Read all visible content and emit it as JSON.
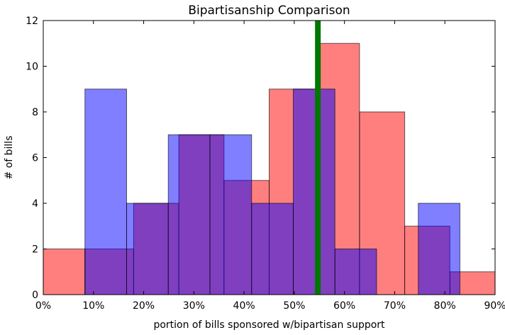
{
  "chart_data": {
    "type": "bar",
    "title": "Bipartisanship Comparison",
    "xlabel": "portion of bills sponsored w/bipartisan support",
    "ylabel": "# of bills",
    "xlim": [
      0,
      0.9
    ],
    "ylim": [
      0,
      12
    ],
    "x_ticks": [
      0,
      0.1,
      0.2,
      0.3,
      0.4,
      0.5,
      0.6,
      0.7,
      0.8,
      0.9
    ],
    "x_tick_labels": [
      "0%",
      "10%",
      "20%",
      "30%",
      "40%",
      "50%",
      "60%",
      "70%",
      "80%",
      "90%"
    ],
    "y_ticks": [
      0,
      2,
      4,
      6,
      8,
      10,
      12
    ],
    "y_tick_labels": [
      "0",
      "2",
      "4",
      "6",
      "8",
      "10",
      "12"
    ],
    "grid": false,
    "legend": "none",
    "reference_line": {
      "x": 0.547,
      "color": "#007700"
    },
    "series": [
      {
        "color": "#0000ff",
        "alpha": 0.5,
        "bins": [
          {
            "x0": 0.0,
            "x1": 0.083,
            "count": 0
          },
          {
            "x0": 0.083,
            "x1": 0.166,
            "count": 9
          },
          {
            "x0": 0.166,
            "x1": 0.249,
            "count": 4
          },
          {
            "x0": 0.249,
            "x1": 0.332,
            "count": 7
          },
          {
            "x0": 0.332,
            "x1": 0.415,
            "count": 7
          },
          {
            "x0": 0.415,
            "x1": 0.498,
            "count": 4
          },
          {
            "x0": 0.498,
            "x1": 0.581,
            "count": 9
          },
          {
            "x0": 0.581,
            "x1": 0.664,
            "count": 2
          },
          {
            "x0": 0.664,
            "x1": 0.747,
            "count": 0
          },
          {
            "x0": 0.747,
            "x1": 0.83,
            "count": 4
          }
        ]
      },
      {
        "color": "#ff0000",
        "alpha": 0.5,
        "bins": [
          {
            "x0": 0.0,
            "x1": 0.083,
            "count": 2
          },
          {
            "x0": 0.083,
            "x1": 0.18,
            "count": 2
          },
          {
            "x0": 0.18,
            "x1": 0.27,
            "count": 4
          },
          {
            "x0": 0.27,
            "x1": 0.36,
            "count": 7
          },
          {
            "x0": 0.36,
            "x1": 0.45,
            "count": 5
          },
          {
            "x0": 0.45,
            "x1": 0.55,
            "count": 9
          },
          {
            "x0": 0.55,
            "x1": 0.63,
            "count": 11
          },
          {
            "x0": 0.63,
            "x1": 0.72,
            "count": 8
          },
          {
            "x0": 0.72,
            "x1": 0.81,
            "count": 3
          },
          {
            "x0": 0.81,
            "x1": 0.9,
            "count": 1
          }
        ]
      }
    ]
  }
}
